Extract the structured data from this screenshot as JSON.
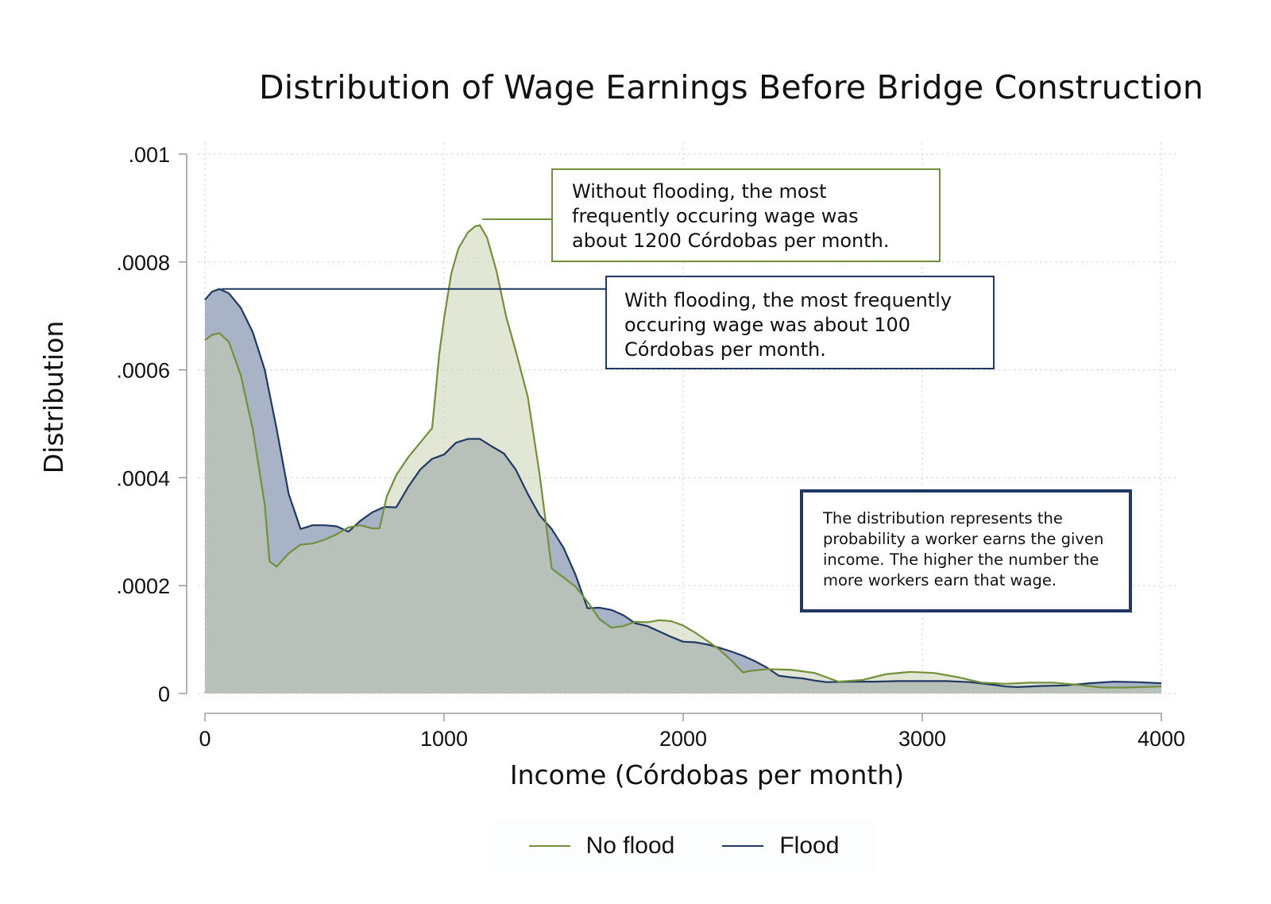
{
  "chart_data": {
    "type": "area",
    "title": "Distribution of Wage Earnings Before Bridge Construction",
    "xlabel": "Income (Córdobas per month)",
    "ylabel": "Distribution",
    "xlim": [
      0,
      4000
    ],
    "ylim": [
      0,
      0.001
    ],
    "x_ticks": [
      0,
      1000,
      2000,
      3000,
      4000
    ],
    "x_tick_labels": [
      "0",
      "1000",
      "2000",
      "3000",
      "4000"
    ],
    "y_ticks": [
      0,
      0.0002,
      0.0004,
      0.0006,
      0.0008,
      0.001
    ],
    "y_tick_labels": [
      "0",
      ".0002",
      ".0004",
      ".0006",
      ".0008",
      ".001"
    ],
    "grid": "dotted",
    "legend_position": "bottom",
    "series": [
      {
        "name": "Flood",
        "color": "#1f3864",
        "fill": "#a8b3c7",
        "x": [
          0,
          30,
          60,
          100,
          150,
          200,
          250,
          300,
          350,
          400,
          450,
          500,
          550,
          600,
          650,
          700,
          750,
          800,
          850,
          900,
          950,
          1000,
          1050,
          1100,
          1150,
          1200,
          1250,
          1300,
          1350,
          1400,
          1450,
          1500,
          1550,
          1600,
          1650,
          1700,
          1750,
          1800,
          1850,
          1900,
          1950,
          2000,
          2050,
          2100,
          2150,
          2200,
          2250,
          2300,
          2350,
          2400,
          2450,
          2500,
          2550,
          2600,
          2700,
          2800,
          2900,
          3000,
          3100,
          3200,
          3300,
          3350,
          3400,
          3500,
          3600,
          3700,
          3800,
          3900,
          4000
        ],
        "values": [
          0.00073,
          0.000745,
          0.00075,
          0.000742,
          0.000715,
          0.00067,
          0.0006,
          0.00049,
          0.00037,
          0.000305,
          0.000312,
          0.000312,
          0.00031,
          0.0003,
          0.00032,
          0.000336,
          0.000346,
          0.000345,
          0.000383,
          0.000415,
          0.000435,
          0.000443,
          0.000465,
          0.000472,
          0.000472,
          0.000458,
          0.000445,
          0.000415,
          0.00037,
          0.00033,
          0.000305,
          0.00027,
          0.00022,
          0.000158,
          0.000159,
          0.000155,
          0.000145,
          0.00013,
          0.000125,
          0.000115,
          0.000105,
          9.6e-05,
          9.5e-05,
          9.1e-05,
          8.5e-05,
          7.8e-05,
          7e-05,
          6e-05,
          4.8e-05,
          3.3e-05,
          3e-05,
          2.8e-05,
          2.4e-05,
          2.1e-05,
          2.2e-05,
          2.2e-05,
          2.3e-05,
          2.3e-05,
          2.3e-05,
          2.1e-05,
          1.6e-05,
          1.3e-05,
          1.2e-05,
          1.4e-05,
          1.5e-05,
          1.9e-05,
          2.2e-05,
          2.1e-05,
          1.9e-05
        ]
      },
      {
        "name": "No flood",
        "color": "#72903a",
        "fill": "#dfe5d3",
        "x": [
          0,
          30,
          60,
          100,
          150,
          200,
          250,
          270,
          300,
          350,
          400,
          450,
          500,
          550,
          600,
          650,
          700,
          730,
          760,
          800,
          850,
          900,
          950,
          980,
          1000,
          1030,
          1060,
          1100,
          1130,
          1150,
          1180,
          1220,
          1260,
          1300,
          1350,
          1400,
          1450,
          1470,
          1500,
          1550,
          1600,
          1650,
          1700,
          1750,
          1800,
          1850,
          1900,
          1950,
          2000,
          2050,
          2100,
          2150,
          2200,
          2250,
          2280,
          2350,
          2450,
          2550,
          2650,
          2750,
          2850,
          2950,
          3050,
          3150,
          3250,
          3350,
          3450,
          3550,
          3650,
          3750,
          3850,
          4000
        ],
        "values": [
          0.000655,
          0.000665,
          0.000668,
          0.000652,
          0.00059,
          0.00049,
          0.00035,
          0.000245,
          0.000235,
          0.00026,
          0.000276,
          0.000278,
          0.000285,
          0.000295,
          0.000308,
          0.000312,
          0.000306,
          0.000306,
          0.000365,
          0.000405,
          0.000438,
          0.000465,
          0.000492,
          0.00063,
          0.000695,
          0.000778,
          0.000825,
          0.000855,
          0.000866,
          0.000868,
          0.000845,
          0.000782,
          0.000698,
          0.000635,
          0.00055,
          0.000405,
          0.000232,
          0.000225,
          0.000215,
          0.000198,
          0.00017,
          0.000138,
          0.000122,
          0.000125,
          0.000133,
          0.000132,
          0.000136,
          0.000134,
          0.000126,
          0.000113,
          9.8e-05,
          8.2e-05,
          6.2e-05,
          3.9e-05,
          4.2e-05,
          4.5e-05,
          4.4e-05,
          3.8e-05,
          2.2e-05,
          2.5e-05,
          3.6e-05,
          4e-05,
          3.8e-05,
          3e-05,
          2e-05,
          1.8e-05,
          2e-05,
          2e-05,
          1.6e-05,
          1.1e-05,
          1.1e-05,
          1.3e-05
        ]
      }
    ]
  },
  "annotations": {
    "no_flood_note": "Without flooding, the most\nfrequently occuring wage was\nabout 1200 Córdobas per month.",
    "flood_note": "With flooding, the most frequently\noccuring wage was about 100\nCórdobas per month.",
    "distribution_note": "The distribution represents the\nprobability a worker earns the given\nincome. The higher the number the\nmore workers earn that wage."
  },
  "legend": {
    "items": [
      {
        "label": "No flood",
        "color": "#72903a"
      },
      {
        "label": "Flood",
        "color": "#1f3864"
      }
    ]
  }
}
